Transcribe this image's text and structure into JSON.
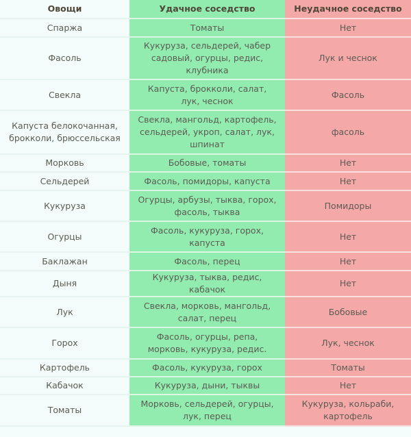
{
  "headers": [
    "Овощи",
    "Удачное соседство",
    "Неудачное соседство"
  ],
  "colors": {
    "vegetable_column": "#f4fcfb",
    "good_column": "#92ecb0",
    "bad_column": "#f5a8a8"
  },
  "rows": [
    {
      "veg": "Спаржа",
      "good": "Томаты",
      "bad": "Нет"
    },
    {
      "veg": "Фасоль",
      "good": "Кукуруза, сельдерей, чабер садовый, огурцы, редис, клубника",
      "bad": "Лук и чеснок"
    },
    {
      "veg": "Свекла",
      "good": "Капуста, брокколи, салат, лук, чеснок",
      "bad": "Фасоль"
    },
    {
      "veg": "Капуста белокочанная, брокколи, брюссельская",
      "good": "Свекла, мангольд, картофель, сельдерей, укроп, салат, лук, шпинат",
      "bad": "фасоль"
    },
    {
      "veg": "Морковь",
      "good": "Бобовые, томаты",
      "bad": "Нет"
    },
    {
      "veg": "Сельдерей",
      "good": "Фасоль, помидоры, капуста",
      "bad": "Нет"
    },
    {
      "veg": "Кукуруза",
      "good": "Огурцы, арбузы, тыква, горох, фасоль, тыква",
      "bad": "Помидоры"
    },
    {
      "veg": "Огурцы",
      "good": "Фасоль, кукуруза, горох, капуста",
      "bad": "Нет"
    },
    {
      "veg": "Баклажан",
      "good": "Фасоль, перец",
      "bad": "Нет"
    },
    {
      "veg": "Дыня",
      "good": "Кукуруза, тыква, редис, кабачок",
      "bad": "Нет"
    },
    {
      "veg": "Лук",
      "good": "Свекла, морковь, мангольд, салат, перец",
      "bad": "Бобовые"
    },
    {
      "veg": "Горох",
      "good": "Фасоль, огурцы, репа, морковь, кукуруза, редис.",
      "bad": "Лук, чеснок"
    },
    {
      "veg": "Картофель",
      "good": "Фасоль, кукуруза, горох",
      "bad": "Томаты"
    },
    {
      "veg": "Кабачок",
      "good": "Кукуруза, дыни, тыквы",
      "bad": "Нет"
    },
    {
      "veg": "Томаты",
      "good": "Морковь, сельдерей, огурцы, лук, перец",
      "bad": "Кукуруза, кольраби, картофель"
    }
  ]
}
